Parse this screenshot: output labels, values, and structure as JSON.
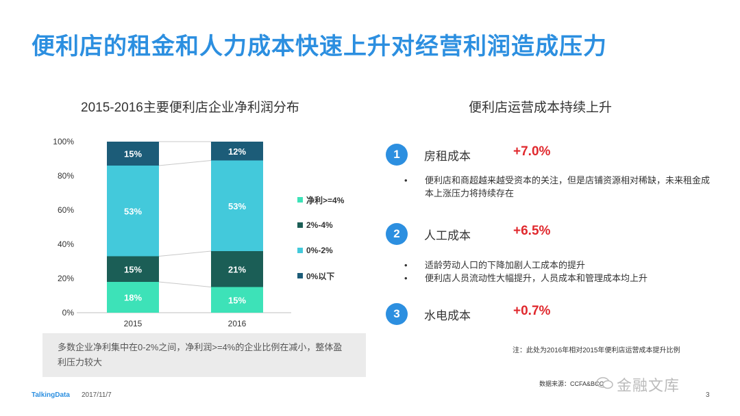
{
  "title": "便利店的租金和人力成本快速上升对经营利润造成压力",
  "left_section_title": "2015-2016主要便利店企业净利润分布",
  "right_section_title": "便利店运营成本持续上升",
  "chart_data": {
    "type": "bar",
    "stacked": true,
    "categories": [
      "2015",
      "2016"
    ],
    "y_ticks": [
      "0%",
      "20%",
      "40%",
      "60%",
      "80%",
      "100%"
    ],
    "ylim": [
      0,
      100
    ],
    "series": [
      {
        "name": "净利>=4%",
        "values": [
          18,
          15
        ],
        "labels": [
          "18%",
          "15%"
        ],
        "color": "#3de2b8"
      },
      {
        "name": "2%-4%",
        "values": [
          15,
          21
        ],
        "labels": [
          "15%",
          "21%"
        ],
        "color": "#1b5e56"
      },
      {
        "name": "0%-2%",
        "values": [
          53,
          53
        ],
        "labels": [
          "53%",
          "53%"
        ],
        "color": "#43c9db"
      },
      {
        "name": "0%以下",
        "values": [
          15,
          12
        ],
        "labels": [
          "15%",
          "12%"
        ],
        "color": "#1c5c78"
      }
    ],
    "legend_order": [
      0,
      1,
      2,
      3
    ],
    "legend_position": "right"
  },
  "summary_text": "多数企业净利集中在0-2%之间，净利润>=4%的企业比例在减小，整体盈利压力较大",
  "costs": [
    {
      "number": "1",
      "label": "房租成本",
      "value": "+7.0%",
      "bullets": [
        "便利店和商超越来越受资本的关注，但是店铺资源相对稀缺，未来租金成本上涨压力将持续存在"
      ]
    },
    {
      "number": "2",
      "label": "人工成本",
      "value": "+6.5%",
      "bullets": [
        "适龄劳动人口的下降加剧人工成本的提升",
        "便利店人员流动性大幅提升，人员成本和管理成本均上升"
      ]
    },
    {
      "number": "3",
      "label": "水电成本",
      "value": "+0.7%",
      "bullets": []
    }
  ],
  "note": "注：此处为2016年相对2015年便利店运营成本提升比例",
  "source": "数据来源：CCFA&BCG",
  "watermark": "金融文库",
  "footer": {
    "brand": "TalkingData",
    "date": "2017/11/7",
    "page": "3"
  },
  "colors": {
    "accent": "#2c8fe0",
    "highlight": "#e0282d"
  }
}
